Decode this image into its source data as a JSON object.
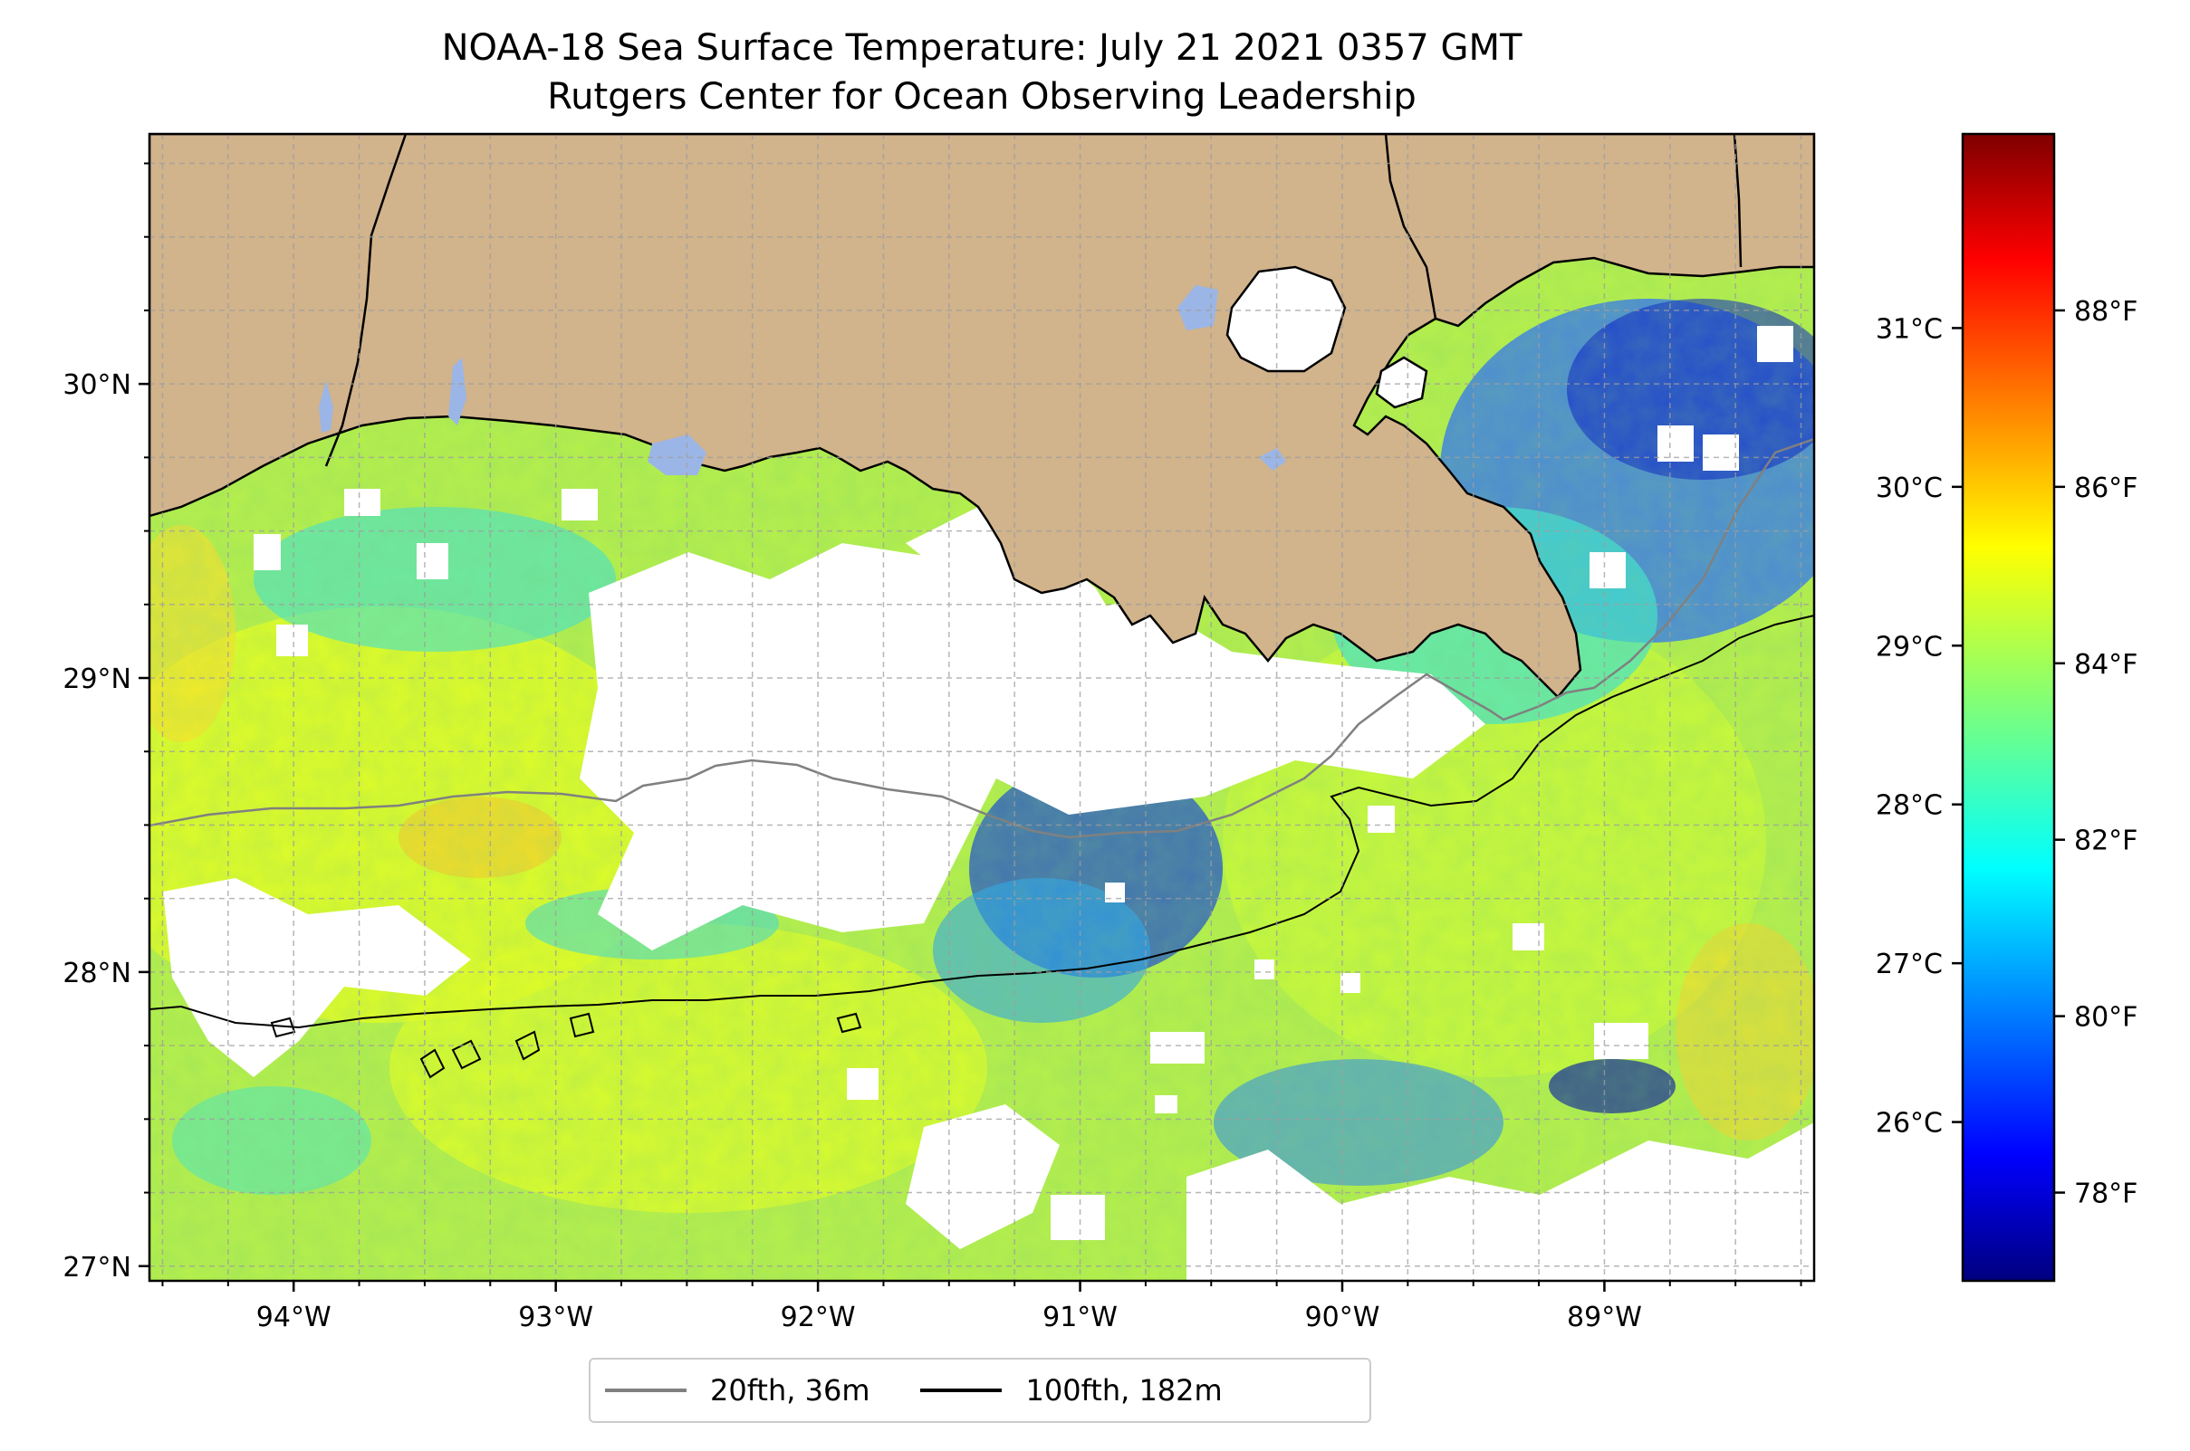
{
  "title": {
    "line1": "NOAA-18 Sea Surface Temperature: July 21 2021 0357 GMT",
    "line2": "Rutgers Center for Ocean Observing Leadership"
  },
  "colors": {
    "land": "#d1b38c",
    "cloud_gap": "#ffffff",
    "lake": "#9bb6e6",
    "coastline": "#000000",
    "isobath_20fth": "#808080",
    "isobath_100fth": "#000000",
    "colormap": "jet"
  },
  "map": {
    "lon_range": [
      -94.55,
      -88.2
    ],
    "lat_range": [
      26.95,
      30.85
    ],
    "lon_ticks": [
      {
        "value": -94,
        "label": "94°W"
      },
      {
        "value": -93,
        "label": "93°W"
      },
      {
        "value": -92,
        "label": "92°W"
      },
      {
        "value": -91,
        "label": "91°W"
      },
      {
        "value": -90,
        "label": "90°W"
      },
      {
        "value": -89,
        "label": "89°W"
      }
    ],
    "lat_ticks": [
      {
        "value": 27,
        "label": "27°N"
      },
      {
        "value": 28,
        "label": "28°N"
      },
      {
        "value": 29,
        "label": "29°N"
      },
      {
        "value": 30,
        "label": "30°N"
      }
    ],
    "grid": true
  },
  "colorbar": {
    "range_f": [
      77.0,
      90.0
    ],
    "celsius_ticks": [
      {
        "value_f": 78.8,
        "label": "26°C"
      },
      {
        "value_f": 80.6,
        "label": "27°C"
      },
      {
        "value_f": 82.4,
        "label": "28°C"
      },
      {
        "value_f": 84.2,
        "label": "29°C"
      },
      {
        "value_f": 86.0,
        "label": "30°C"
      },
      {
        "value_f": 87.8,
        "label": "31°C"
      }
    ],
    "fahrenheit_ticks": [
      {
        "value_f": 78,
        "label": "78°F"
      },
      {
        "value_f": 80,
        "label": "80°F"
      },
      {
        "value_f": 82,
        "label": "82°F"
      },
      {
        "value_f": 84,
        "label": "84°F"
      },
      {
        "value_f": 86,
        "label": "86°F"
      },
      {
        "value_f": 88,
        "label": "88°F"
      }
    ]
  },
  "legend": {
    "items": [
      {
        "label": "20fth, 36m",
        "color": "#808080"
      },
      {
        "label": "100fth, 182m",
        "color": "#000000"
      }
    ]
  }
}
